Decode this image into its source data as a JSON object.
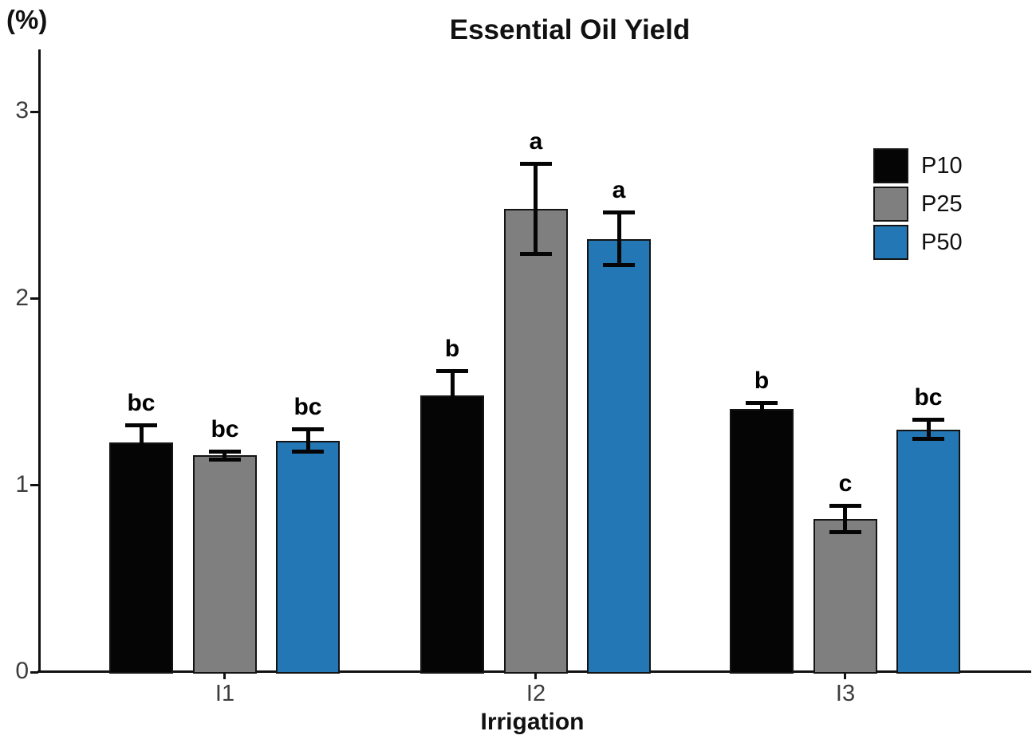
{
  "chart_data": {
    "type": "bar",
    "title": "Essential Oil Yield",
    "ylabel": "(%)",
    "xlabel": "Irrigation",
    "categories": [
      "I1",
      "I2",
      "I3"
    ],
    "series": [
      {
        "name": "P10",
        "color": "#050505",
        "values": [
          1.23,
          1.48,
          1.41
        ],
        "errors": [
          0.09,
          0.13,
          0.03
        ],
        "sig_letters": [
          "bc",
          "b",
          "b"
        ]
      },
      {
        "name": "P25",
        "color": "#7f7f7f",
        "values": [
          1.16,
          2.48,
          0.82
        ],
        "errors": [
          0.02,
          0.24,
          0.07
        ],
        "sig_letters": [
          "bc",
          "a",
          "c"
        ]
      },
      {
        "name": "P50",
        "color": "#2377b4",
        "values": [
          1.24,
          2.32,
          1.3
        ],
        "errors": [
          0.06,
          0.14,
          0.05
        ],
        "sig_letters": [
          "bc",
          "a",
          "bc"
        ]
      }
    ],
    "yticks": [
      "0",
      "1",
      "2",
      "3"
    ],
    "ylim": [
      0,
      3.35
    ],
    "grid": false,
    "error_bars": true,
    "legend_position": "top-right"
  }
}
